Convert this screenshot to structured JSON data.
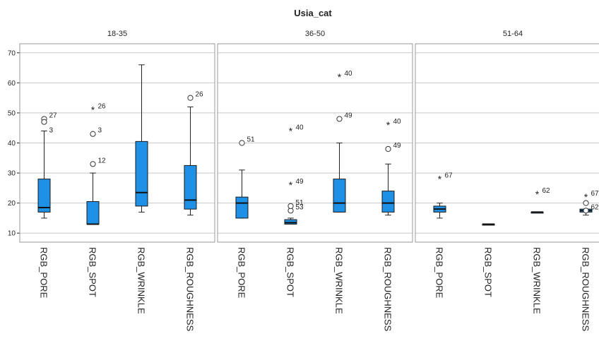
{
  "chart_data": {
    "type": "boxplot",
    "title": "Usia_cat",
    "ylim": [
      7,
      73
    ],
    "yticks": [
      10,
      20,
      30,
      40,
      50,
      60,
      70
    ],
    "grid": true,
    "categories": [
      "RGB_PORE",
      "RGB_SPOT",
      "RGB_WRINKLE",
      "RGB_ROUGHNESS"
    ],
    "color": "#1e90e6",
    "panels": [
      {
        "name": "18-35",
        "boxes": [
          {
            "category": "RGB_PORE",
            "min": 15,
            "q1": 17,
            "median": 18.5,
            "q3": 28,
            "max": 44,
            "outliers": [
              {
                "value": 48,
                "label": "27",
                "kind": "circle"
              },
              {
                "value": 47,
                "label": "",
                "kind": "circle"
              },
              {
                "value": 43,
                "label": "3",
                "kind": "none"
              }
            ]
          },
          {
            "category": "RGB_SPOT",
            "min": 13,
            "q1": 13,
            "median": 13,
            "q3": 20.5,
            "max": 30,
            "outliers": [
              {
                "value": 33,
                "label": "12",
                "kind": "circle"
              },
              {
                "value": 43,
                "label": "3",
                "kind": "circle"
              },
              {
                "value": 51,
                "label": "26",
                "kind": "star"
              }
            ]
          },
          {
            "category": "RGB_WRINKLE",
            "min": 17,
            "q1": 19,
            "median": 23.5,
            "q3": 40.5,
            "max": 66,
            "outliers": []
          },
          {
            "category": "RGB_ROUGHNESS",
            "min": 16,
            "q1": 18,
            "median": 21,
            "q3": 32.5,
            "max": 52,
            "outliers": [
              {
                "value": 55,
                "label": "26",
                "kind": "circle"
              }
            ]
          }
        ]
      },
      {
        "name": "36-50",
        "boxes": [
          {
            "category": "RGB_PORE",
            "min": 15,
            "q1": 15,
            "median": 20,
            "q3": 22,
            "max": 31,
            "outliers": [
              {
                "value": 40,
                "label": "51",
                "kind": "circle"
              }
            ]
          },
          {
            "category": "RGB_SPOT",
            "min": 13,
            "q1": 13,
            "median": 13.5,
            "q3": 14.5,
            "max": 15,
            "outliers": [
              {
                "value": 17.5,
                "label": "53",
                "kind": "circle"
              },
              {
                "value": 19,
                "label": "51",
                "kind": "circle"
              },
              {
                "value": 26,
                "label": "49",
                "kind": "star"
              },
              {
                "value": 44,
                "label": "40",
                "kind": "star"
              }
            ]
          },
          {
            "category": "RGB_WRINKLE",
            "min": 17,
            "q1": 17,
            "median": 20,
            "q3": 28,
            "max": 40,
            "outliers": [
              {
                "value": 48,
                "label": "49",
                "kind": "circle"
              },
              {
                "value": 62,
                "label": "40",
                "kind": "star"
              }
            ]
          },
          {
            "category": "RGB_ROUGHNESS",
            "min": 16,
            "q1": 17,
            "median": 20,
            "q3": 24,
            "max": 33,
            "outliers": [
              {
                "value": 38,
                "label": "49",
                "kind": "circle"
              },
              {
                "value": 46,
                "label": "40",
                "kind": "star"
              }
            ]
          }
        ]
      },
      {
        "name": "51-64",
        "boxes": [
          {
            "category": "RGB_PORE",
            "min": 15,
            "q1": 17,
            "median": 18,
            "q3": 19,
            "max": 20,
            "outliers": [
              {
                "value": 28,
                "label": "67",
                "kind": "star"
              }
            ]
          },
          {
            "category": "RGB_SPOT",
            "min": 13,
            "q1": 13,
            "median": 13,
            "q3": 13,
            "max": 13,
            "outliers": []
          },
          {
            "category": "RGB_WRINKLE",
            "min": 17,
            "q1": 17,
            "median": 17,
            "q3": 17,
            "max": 17,
            "outliers": [
              {
                "value": 23,
                "label": "62",
                "kind": "star"
              }
            ]
          },
          {
            "category": "RGB_ROUGHNESS",
            "min": 16,
            "q1": 17,
            "median": 17.5,
            "q3": 18,
            "max": 18,
            "outliers": [
              {
                "value": 17.5,
                "label": "62",
                "kind": "circle"
              },
              {
                "value": 20,
                "label": "",
                "kind": "circle"
              },
              {
                "value": 22,
                "label": "67",
                "kind": "star"
              }
            ]
          }
        ]
      }
    ]
  }
}
